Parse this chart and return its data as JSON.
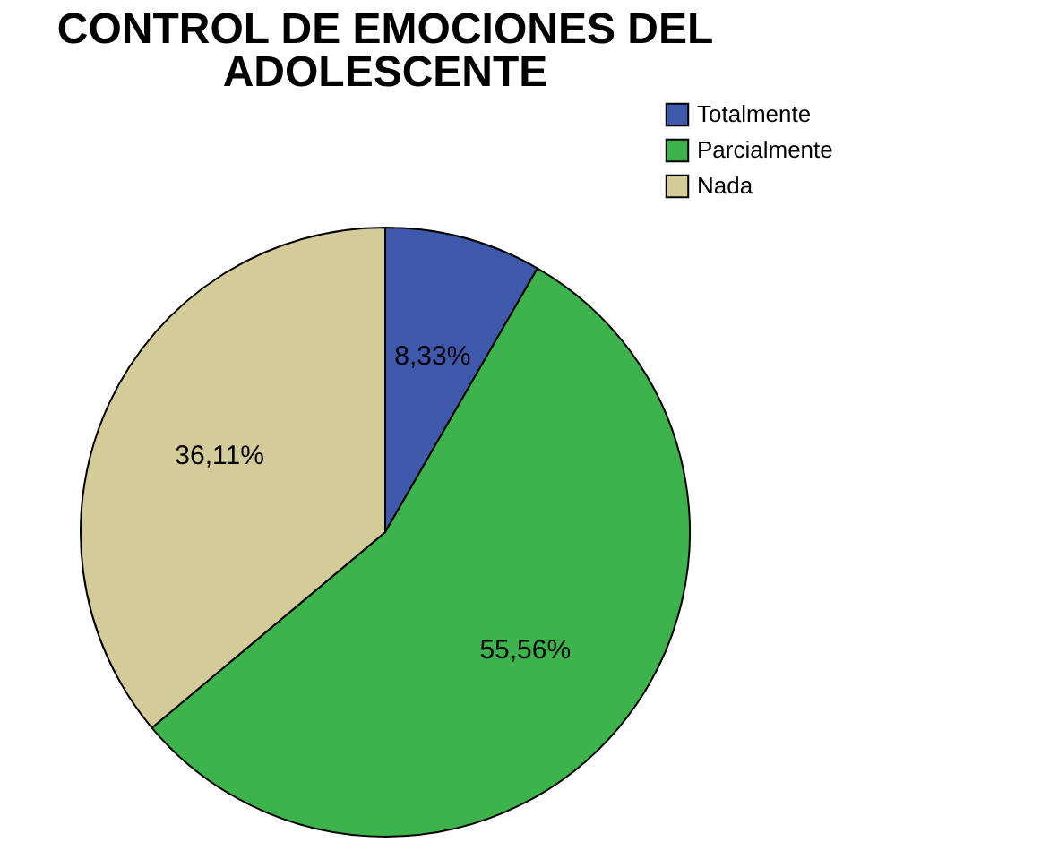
{
  "chart_data": {
    "type": "pie",
    "title": "CONTROL DE EMOCIONES DEL ADOLESCENTE",
    "categories": [
      "Totalmente",
      "Parcialmente",
      "Nada"
    ],
    "values": [
      8.33,
      55.56,
      36.11
    ],
    "value_labels": [
      "8,33%",
      "55,56%",
      "36,11%"
    ],
    "colors": [
      "#3e58ac",
      "#3cb44b",
      "#d4cc98"
    ],
    "legend": "top right"
  }
}
